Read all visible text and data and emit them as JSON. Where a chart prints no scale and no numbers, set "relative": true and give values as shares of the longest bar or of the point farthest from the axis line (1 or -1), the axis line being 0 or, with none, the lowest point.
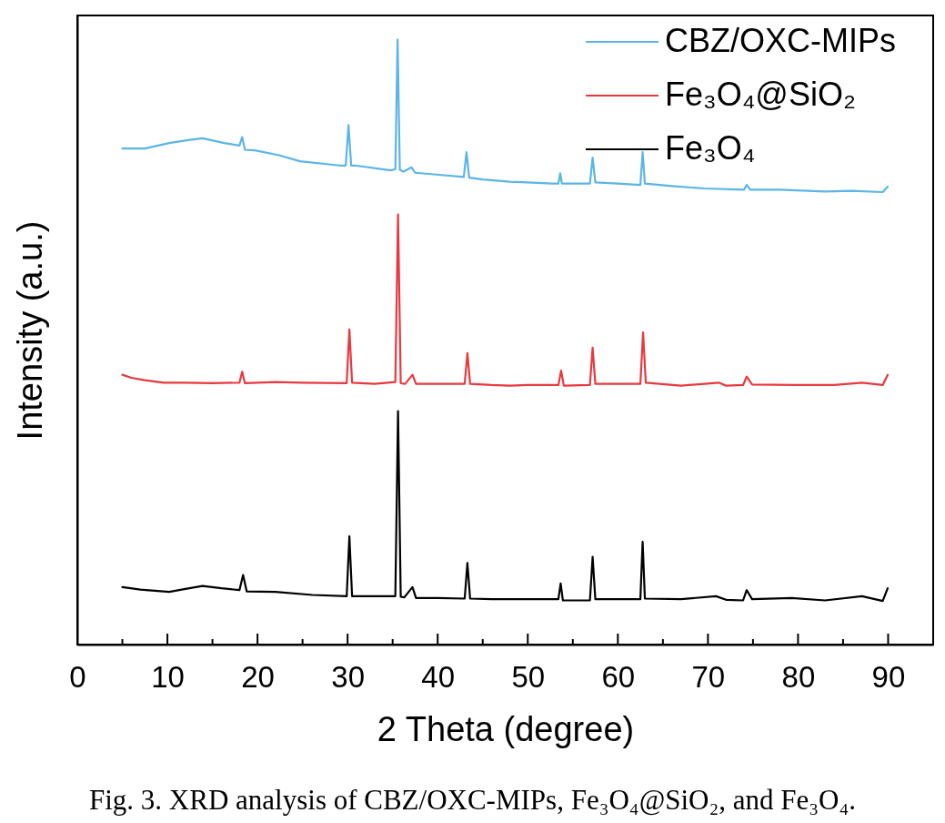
{
  "chart_data": {
    "type": "line",
    "relative": true,
    "xlabel": "2 Theta (degree)",
    "ylabel": "Intensity (a.u.)",
    "xlim": [
      0,
      95
    ],
    "xticks": [
      0,
      {
        "value": 5,
        "label": null
      },
      10,
      {
        "value": 15,
        "label": null
      },
      20,
      {
        "value": 25,
        "label": null
      },
      30,
      {
        "value": 35,
        "label": null
      },
      40,
      {
        "value": 45,
        "label": null
      },
      50,
      {
        "value": 55,
        "label": null
      },
      60,
      {
        "value": 65,
        "label": null
      },
      70,
      {
        "value": 75,
        "label": null
      },
      80,
      {
        "value": 85,
        "label": null
      },
      90
    ],
    "tick_labels": "x",
    "legend": "top right",
    "annotations": [
      "Fig. 3. XRD analysis of CBZ/OXC-MIPs, Fe₃O₄@SiO₂, and Fe₃O₄."
    ],
    "series": [
      {
        "name": "CBZ/OXC-MIPs",
        "color": "#5bb5e8",
        "x": [
          5.0,
          7.5,
          10.2,
          12.3,
          13.9,
          16.3,
          18.0,
          18.3,
          18.6,
          19.7,
          22.4,
          24.7,
          29.1,
          29.8,
          30.1,
          30.4,
          30.8,
          34.8,
          35.3,
          35.55,
          35.8,
          36.2,
          37.1,
          37.5,
          39.9,
          42.9,
          43.2,
          43.5,
          45.0,
          48.0,
          50.0,
          52.7,
          53.4,
          53.6,
          53.8,
          56.9,
          57.2,
          57.5,
          60.0,
          62.5,
          62.75,
          63.0,
          66.0,
          69.6,
          74.0,
          74.3,
          74.7,
          78.0,
          83.0,
          86.0,
          89.4,
          89.95
        ],
        "values": [
          0.82,
          0.82,
          0.829,
          0.834,
          0.837,
          0.829,
          0.825,
          0.839,
          0.818,
          0.817,
          0.809,
          0.799,
          0.792,
          0.792,
          0.859,
          0.792,
          0.792,
          0.784,
          0.786,
          1.0,
          0.785,
          0.782,
          0.789,
          0.78,
          0.777,
          0.773,
          0.814,
          0.772,
          0.769,
          0.765,
          0.764,
          0.762,
          0.762,
          0.779,
          0.762,
          0.762,
          0.805,
          0.764,
          0.762,
          0.76,
          0.814,
          0.762,
          0.758,
          0.754,
          0.752,
          0.76,
          0.752,
          0.752,
          0.749,
          0.75,
          0.748,
          0.757
        ]
      },
      {
        "name": "Fe₃O₄@SiO₂",
        "color": "#e8393f",
        "x": [
          5.0,
          6.0,
          7.5,
          9.6,
          12.0,
          15.0,
          18.0,
          18.3,
          18.6,
          22.0,
          25.0,
          29.9,
          30.2,
          30.5,
          33.0,
          35.3,
          35.6,
          35.9,
          36.4,
          37.2,
          37.6,
          40.0,
          43.0,
          43.3,
          43.6,
          46.0,
          48.0,
          50.0,
          53.4,
          53.7,
          54.0,
          56.9,
          57.2,
          57.5,
          60.0,
          62.5,
          62.8,
          63.1,
          67.0,
          71.2,
          72.0,
          73.9,
          74.3,
          74.9,
          79.7,
          84.0,
          87.1,
          89.4,
          89.95
        ],
        "values": [
          0.446,
          0.441,
          0.437,
          0.433,
          0.433,
          0.432,
          0.433,
          0.451,
          0.432,
          0.434,
          0.433,
          0.432,
          0.521,
          0.433,
          0.431,
          0.434,
          0.711,
          0.432,
          0.431,
          0.446,
          0.431,
          0.431,
          0.431,
          0.482,
          0.431,
          0.429,
          0.428,
          0.429,
          0.429,
          0.453,
          0.428,
          0.429,
          0.491,
          0.431,
          0.431,
          0.431,
          0.516,
          0.433,
          0.428,
          0.433,
          0.428,
          0.429,
          0.443,
          0.43,
          0.429,
          0.429,
          0.433,
          0.429,
          0.446
        ]
      },
      {
        "name": "Fe₃O₄",
        "color": "#000000",
        "x": [
          5.0,
          7.0,
          10.2,
          12.0,
          13.9,
          16.0,
          18.0,
          18.4,
          18.8,
          22.0,
          26.1,
          29.9,
          30.2,
          30.5,
          33.0,
          35.3,
          35.6,
          35.9,
          36.3,
          37.2,
          37.6,
          40.0,
          43.0,
          43.3,
          43.6,
          46.0,
          48.0,
          50.0,
          53.4,
          53.65,
          53.9,
          56.9,
          57.2,
          57.5,
          60.0,
          62.5,
          62.75,
          63.0,
          67.0,
          70.9,
          72.0,
          73.9,
          74.3,
          74.9,
          79.3,
          83.0,
          87.1,
          89.4,
          89.95
        ],
        "values": [
          0.095,
          0.091,
          0.087,
          0.092,
          0.097,
          0.093,
          0.09,
          0.115,
          0.088,
          0.087,
          0.082,
          0.08,
          0.179,
          0.08,
          0.08,
          0.08,
          0.386,
          0.079,
          0.078,
          0.095,
          0.077,
          0.077,
          0.076,
          0.135,
          0.076,
          0.075,
          0.075,
          0.075,
          0.075,
          0.101,
          0.073,
          0.073,
          0.145,
          0.075,
          0.075,
          0.075,
          0.17,
          0.076,
          0.075,
          0.08,
          0.074,
          0.073,
          0.09,
          0.075,
          0.077,
          0.073,
          0.08,
          0.072,
          0.093
        ]
      }
    ]
  }
}
